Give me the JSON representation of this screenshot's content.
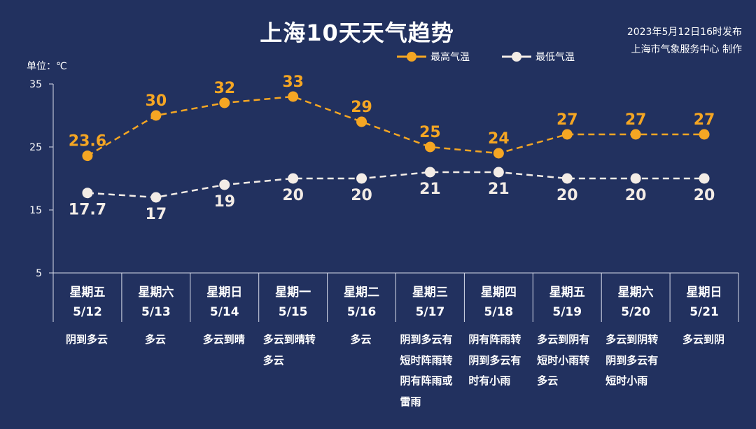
{
  "header": {
    "title": "上海10天天气趋势",
    "publish_line1": "2023年5月12日16时发布",
    "publish_line2": "上海市气象服务中心 制作"
  },
  "unit_label": "单位：℃",
  "legend": {
    "high": "最高气温",
    "low": "最低气温"
  },
  "colors": {
    "background": "#22315f",
    "high": "#f5a623",
    "low": "#f3ece6",
    "axis": "#d8dcea"
  },
  "days": [
    {
      "day": "星期五",
      "date": "5/12",
      "weather": "阴到多云"
    },
    {
      "day": "星期六",
      "date": "5/13",
      "weather": "多云"
    },
    {
      "day": "星期日",
      "date": "5/14",
      "weather": "多云到晴"
    },
    {
      "day": "星期一",
      "date": "5/15",
      "weather": "多云到晴转多云"
    },
    {
      "day": "星期二",
      "date": "5/16",
      "weather": "多云"
    },
    {
      "day": "星期三",
      "date": "5/17",
      "weather": "阴到多云有短时阵雨转阴有阵雨或雷雨"
    },
    {
      "day": "星期四",
      "date": "5/18",
      "weather": "阴有阵雨转阴到多云有时有小雨"
    },
    {
      "day": "星期五",
      "date": "5/19",
      "weather": "多云到阴有短时小雨转多云"
    },
    {
      "day": "星期六",
      "date": "5/20",
      "weather": "多云到阴转阴到多云有短时小雨"
    },
    {
      "day": "星期日",
      "date": "5/21",
      "weather": "多云到阴"
    }
  ],
  "chart_data": {
    "type": "line",
    "title": "上海10天天气趋势",
    "ylabel": "单位：℃",
    "ylim": [
      5,
      35
    ],
    "yticks": [
      5,
      15,
      25,
      35
    ],
    "categories": [
      "5/12",
      "5/13",
      "5/14",
      "5/15",
      "5/16",
      "5/17",
      "5/18",
      "5/19",
      "5/20",
      "5/21"
    ],
    "series": [
      {
        "name": "最高气温",
        "values": [
          23.6,
          30,
          32,
          33,
          29,
          25,
          24,
          27,
          27,
          27
        ],
        "labels": [
          "23.6",
          "30",
          "32",
          "33",
          "29",
          "25",
          "24",
          "27",
          "27",
          "27"
        ]
      },
      {
        "name": "最低气温",
        "values": [
          17.7,
          17,
          19,
          20,
          20,
          21,
          21,
          20,
          20,
          20
        ],
        "labels": [
          "17.7",
          "17",
          "19",
          "20",
          "20",
          "21",
          "21",
          "20",
          "20",
          "20"
        ]
      }
    ],
    "line_style": "dashed",
    "legend_position": "top-right",
    "grid": false
  }
}
